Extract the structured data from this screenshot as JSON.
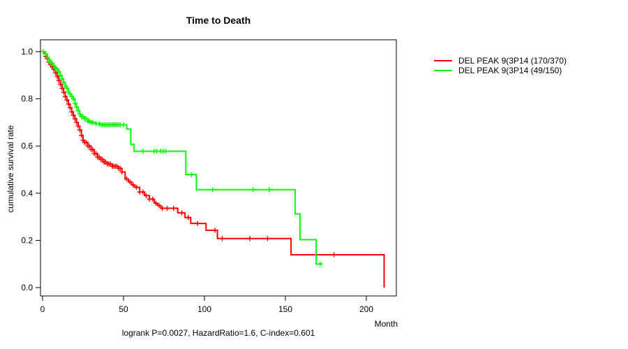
{
  "chart_data": {
    "type": "line",
    "subtype": "kaplan-meier-step-survival",
    "title": "Time to Death",
    "xlabel": "Month",
    "ylabel": "cumulative survival rate",
    "annotation": "logrank P=0.0027, HazardRatio=1.6, C-index=0.601",
    "x_ticks": [
      0,
      50,
      100,
      150,
      200
    ],
    "y_tick_labels": [
      "0.0",
      "0.2",
      "0.4",
      "0.6",
      "0.8",
      "1.0"
    ],
    "y_tick_values": [
      0.0,
      0.2,
      0.4,
      0.6,
      0.8,
      1.0
    ],
    "xlim": [
      0,
      218
    ],
    "ylim": [
      0.0,
      1.0
    ],
    "grid": false,
    "legend_position": "right-outside",
    "frame_color": "#000000",
    "background_color": "#ffffff",
    "series": [
      {
        "name": "DEL PEAK 9(3P14 (170/370)",
        "color": "#ff0000",
        "end_month": 211,
        "steps": [
          [
            0,
            1.0
          ],
          [
            1,
            0.99
          ],
          [
            2,
            0.98
          ],
          [
            3,
            0.97
          ],
          [
            4,
            0.955
          ],
          [
            5,
            0.945
          ],
          [
            6,
            0.935
          ],
          [
            7,
            0.925
          ],
          [
            8,
            0.91
          ],
          [
            9,
            0.895
          ],
          [
            10,
            0.878
          ],
          [
            11,
            0.862
          ],
          [
            12,
            0.845
          ],
          [
            13,
            0.828
          ],
          [
            14,
            0.81
          ],
          [
            15,
            0.795
          ],
          [
            16,
            0.778
          ],
          [
            17,
            0.762
          ],
          [
            18,
            0.745
          ],
          [
            19,
            0.73
          ],
          [
            20,
            0.715
          ],
          [
            21,
            0.7
          ],
          [
            22,
            0.685
          ],
          [
            23,
            0.668
          ],
          [
            24,
            0.645
          ],
          [
            25,
            0.625
          ],
          [
            26,
            0.615
          ],
          [
            28,
            0.6
          ],
          [
            30,
            0.585
          ],
          [
            32,
            0.568
          ],
          [
            34,
            0.553
          ],
          [
            36,
            0.543
          ],
          [
            38,
            0.532
          ],
          [
            40,
            0.524
          ],
          [
            43,
            0.514
          ],
          [
            47,
            0.505
          ],
          [
            49,
            0.49
          ],
          [
            51,
            0.46
          ],
          [
            53,
            0.448
          ],
          [
            55,
            0.435
          ],
          [
            57,
            0.425
          ],
          [
            60,
            0.405
          ],
          [
            63,
            0.39
          ],
          [
            66,
            0.375
          ],
          [
            69,
            0.358
          ],
          [
            71,
            0.348
          ],
          [
            73,
            0.336
          ],
          [
            83.5,
            0.317
          ],
          [
            88,
            0.297
          ],
          [
            91.5,
            0.272
          ],
          [
            101,
            0.243
          ],
          [
            108,
            0.208
          ],
          [
            153.5,
            0.139
          ],
          [
            211,
            0.0
          ]
        ],
        "censor_months": [
          2,
          3,
          4,
          5,
          6,
          7,
          8,
          9,
          10,
          11,
          12,
          13,
          14,
          15,
          16,
          17,
          18,
          19,
          20,
          21,
          22,
          23,
          24,
          25,
          26,
          27,
          28,
          29,
          30,
          31,
          32,
          33,
          34,
          35,
          36,
          37,
          38,
          39,
          40,
          41,
          42,
          43,
          44,
          45,
          46,
          47,
          48,
          49,
          52,
          54,
          56,
          58,
          60,
          62,
          64,
          66,
          68,
          70,
          72,
          74,
          77,
          81,
          86,
          90,
          95.7,
          106.5,
          111,
          128,
          139,
          180
        ]
      },
      {
        "name": "DEL PEAK 9(3P14 (49/150)",
        "color": "#00ff00",
        "end_month": 173,
        "steps": [
          [
            0,
            1.0
          ],
          [
            1.5,
            0.99
          ],
          [
            3,
            0.975
          ],
          [
            4,
            0.965
          ],
          [
            5,
            0.955
          ],
          [
            6,
            0.95
          ],
          [
            7,
            0.94
          ],
          [
            8,
            0.93
          ],
          [
            9,
            0.925
          ],
          [
            10,
            0.915
          ],
          [
            11,
            0.9
          ],
          [
            12,
            0.885
          ],
          [
            13,
            0.87
          ],
          [
            14,
            0.855
          ],
          [
            15,
            0.845
          ],
          [
            16,
            0.83
          ],
          [
            17,
            0.82
          ],
          [
            18,
            0.81
          ],
          [
            19,
            0.8
          ],
          [
            20,
            0.78
          ],
          [
            21,
            0.765
          ],
          [
            22,
            0.75
          ],
          [
            23,
            0.735
          ],
          [
            24,
            0.725
          ],
          [
            26,
            0.715
          ],
          [
            28,
            0.705
          ],
          [
            30,
            0.7
          ],
          [
            33,
            0.695
          ],
          [
            36,
            0.69
          ],
          [
            52,
            0.672
          ],
          [
            54.5,
            0.607
          ],
          [
            56.5,
            0.578
          ],
          [
            88.5,
            0.479
          ],
          [
            95,
            0.415
          ],
          [
            156,
            0.312
          ],
          [
            159,
            0.203
          ],
          [
            169,
            0.1
          ]
        ],
        "censor_months": [
          0.5,
          2,
          3,
          4,
          5,
          6,
          7,
          8,
          9,
          10,
          11,
          12,
          13,
          14,
          15,
          16,
          17,
          18,
          19,
          20,
          21,
          22,
          23,
          24,
          25,
          26,
          27,
          28,
          29,
          30,
          31,
          33,
          35,
          36,
          37,
          38,
          39,
          40,
          41,
          42,
          43,
          44,
          45,
          46,
          47,
          48,
          50,
          62,
          69,
          70.5,
          73,
          74.5,
          76,
          92,
          105,
          130,
          140,
          171.5
        ]
      }
    ]
  }
}
